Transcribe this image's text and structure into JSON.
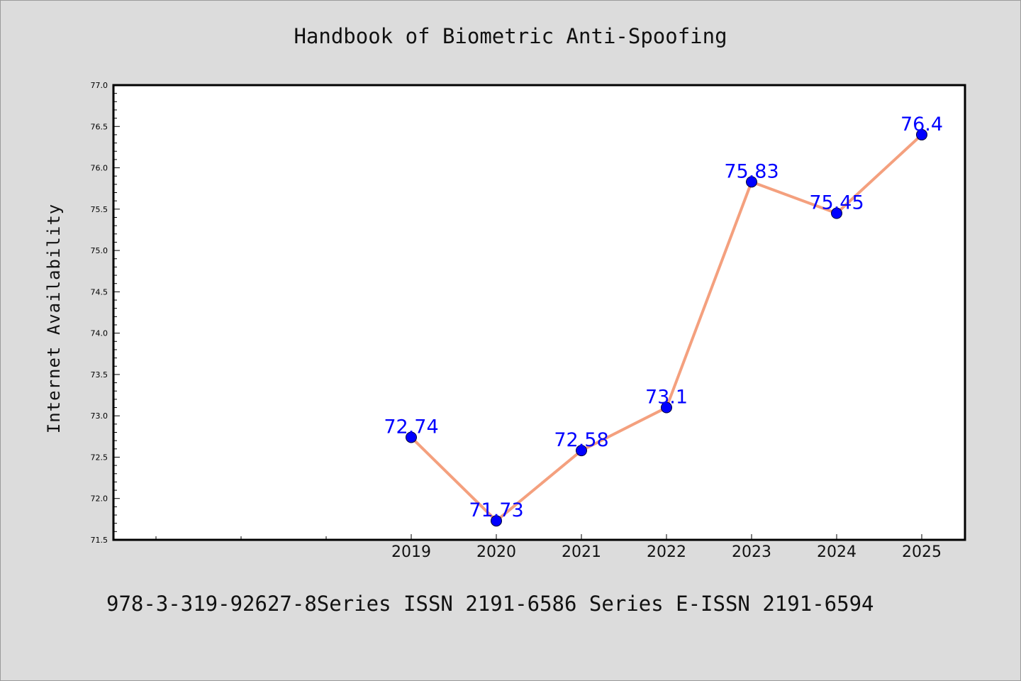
{
  "chart_data": {
    "type": "line",
    "title": "Handbook of Biometric Anti-Spoofing",
    "ylabel": "Internet Availability",
    "caption": "978-3-319-92627-8Series ISSN 2191-6586 Series E-ISSN 2191-6594",
    "x": [
      "2019",
      "2020",
      "2021",
      "2022",
      "2023",
      "2024",
      "2025"
    ],
    "values": [
      72.74,
      71.73,
      72.58,
      73.1,
      75.83,
      75.45,
      76.4
    ],
    "data_labels": [
      "72.74",
      "71.73",
      "72.58",
      "73.1",
      "75.83",
      "75.45",
      "76.4"
    ],
    "ylim": [
      71.5,
      77.0
    ],
    "y_ticks": [
      "71.5",
      "72.0",
      "72.5",
      "73.0",
      "73.5",
      "74.0",
      "74.5",
      "75.0",
      "75.5",
      "76.0",
      "76.5",
      "77.0"
    ],
    "grid": false,
    "line_color": "#f4a07e",
    "marker_color": "#0000ff",
    "label_color": "#0000ff"
  }
}
